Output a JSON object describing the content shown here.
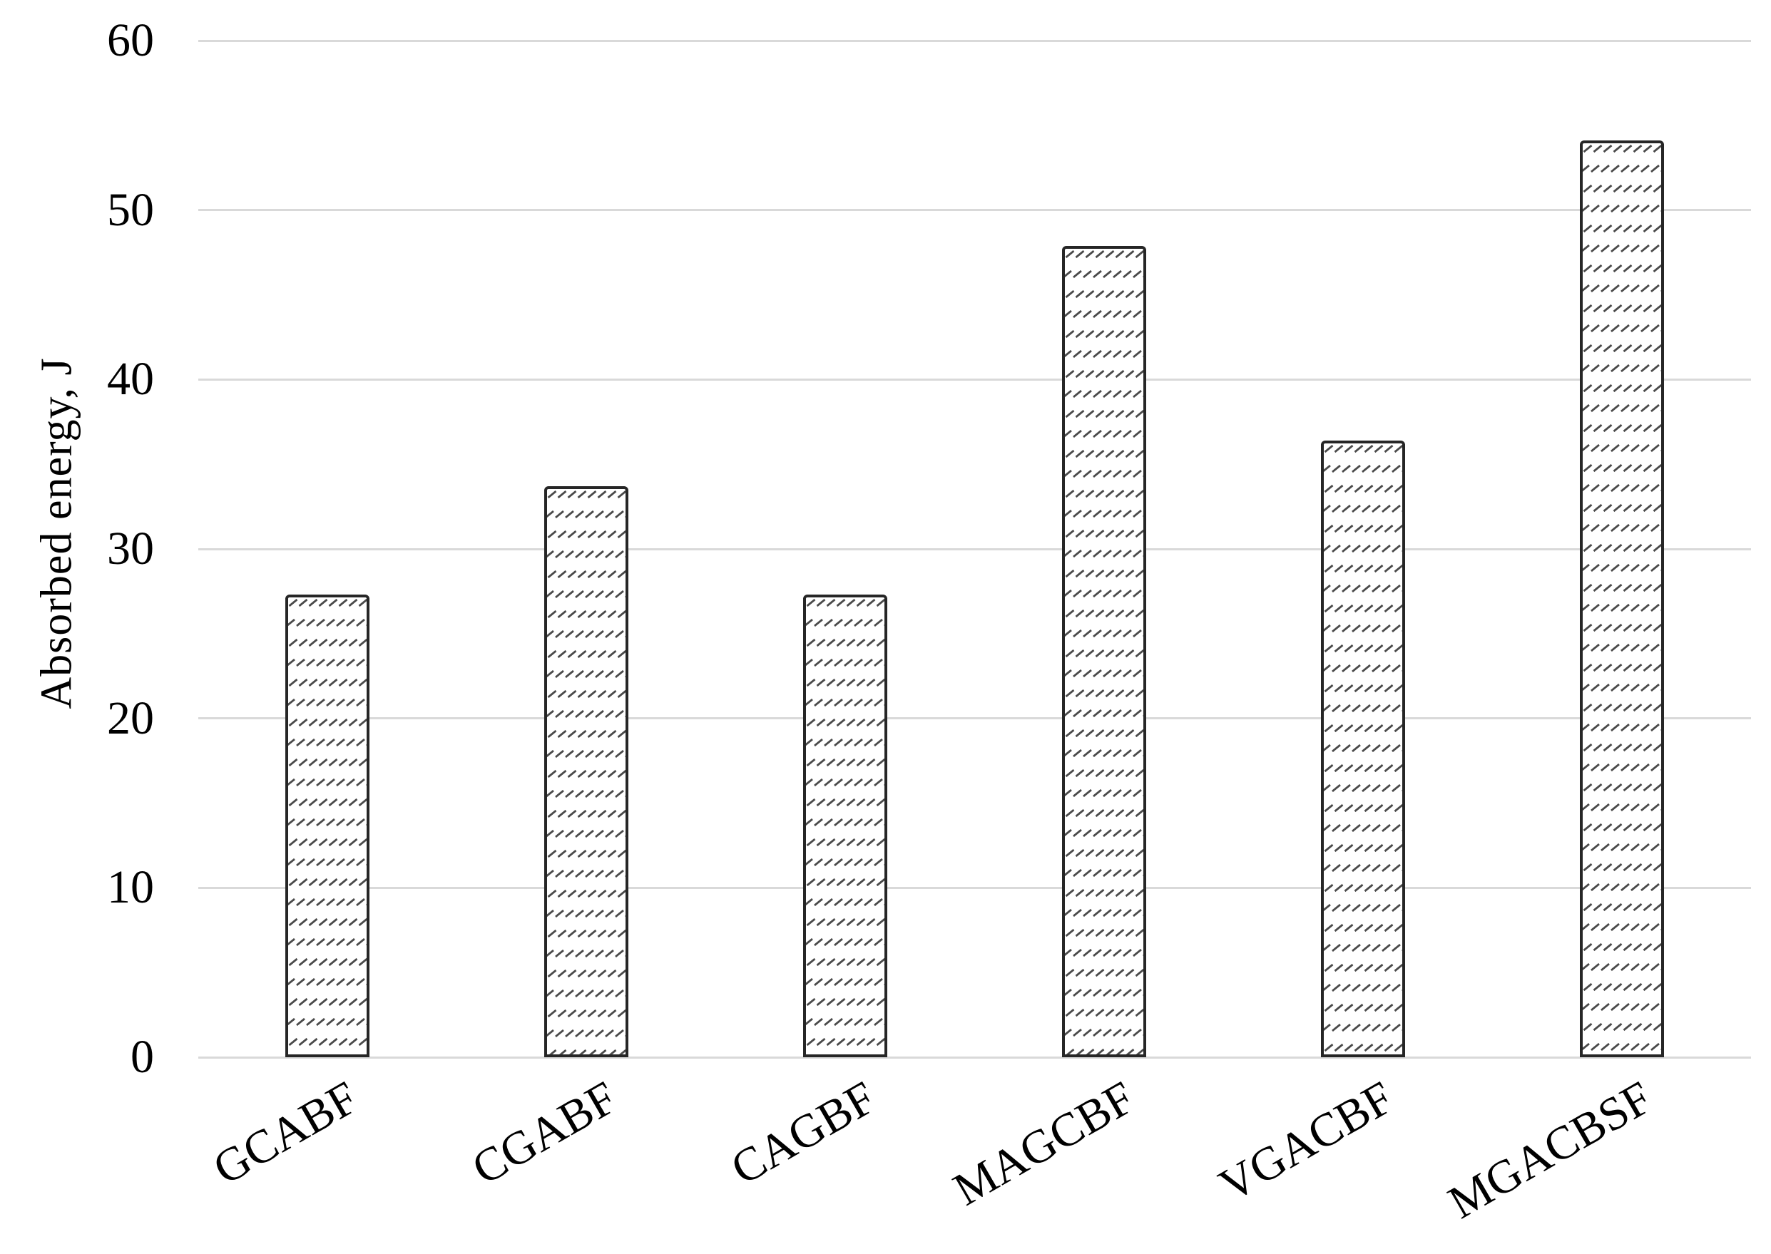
{
  "chart_data": {
    "type": "bar",
    "title": "",
    "xlabel": "",
    "ylabel": "Absorbed energy, J",
    "categories": [
      "GCABF",
      "CGABF",
      "CAGBF",
      "MAGCBF",
      "VGACBF",
      "MGACBSF"
    ],
    "values": [
      27.3,
      33.7,
      27.3,
      47.9,
      36.4,
      54.1
    ],
    "ylim": [
      0,
      60
    ],
    "ytick_step": 10,
    "ytick_labels": [
      "0",
      "10",
      "20",
      "30",
      "40",
      "50",
      "60"
    ],
    "grid": true,
    "legend_position": "none",
    "x_label_rotation_deg": -30,
    "colors": {
      "background": "#ffffff",
      "gridline": "#d9d9d9",
      "bar_fill": "#ffffff",
      "bar_border": "#262626",
      "hatch": "#4a4a4a",
      "text": "#000000"
    },
    "bar_pattern": "diagonal-dash-rows"
  }
}
